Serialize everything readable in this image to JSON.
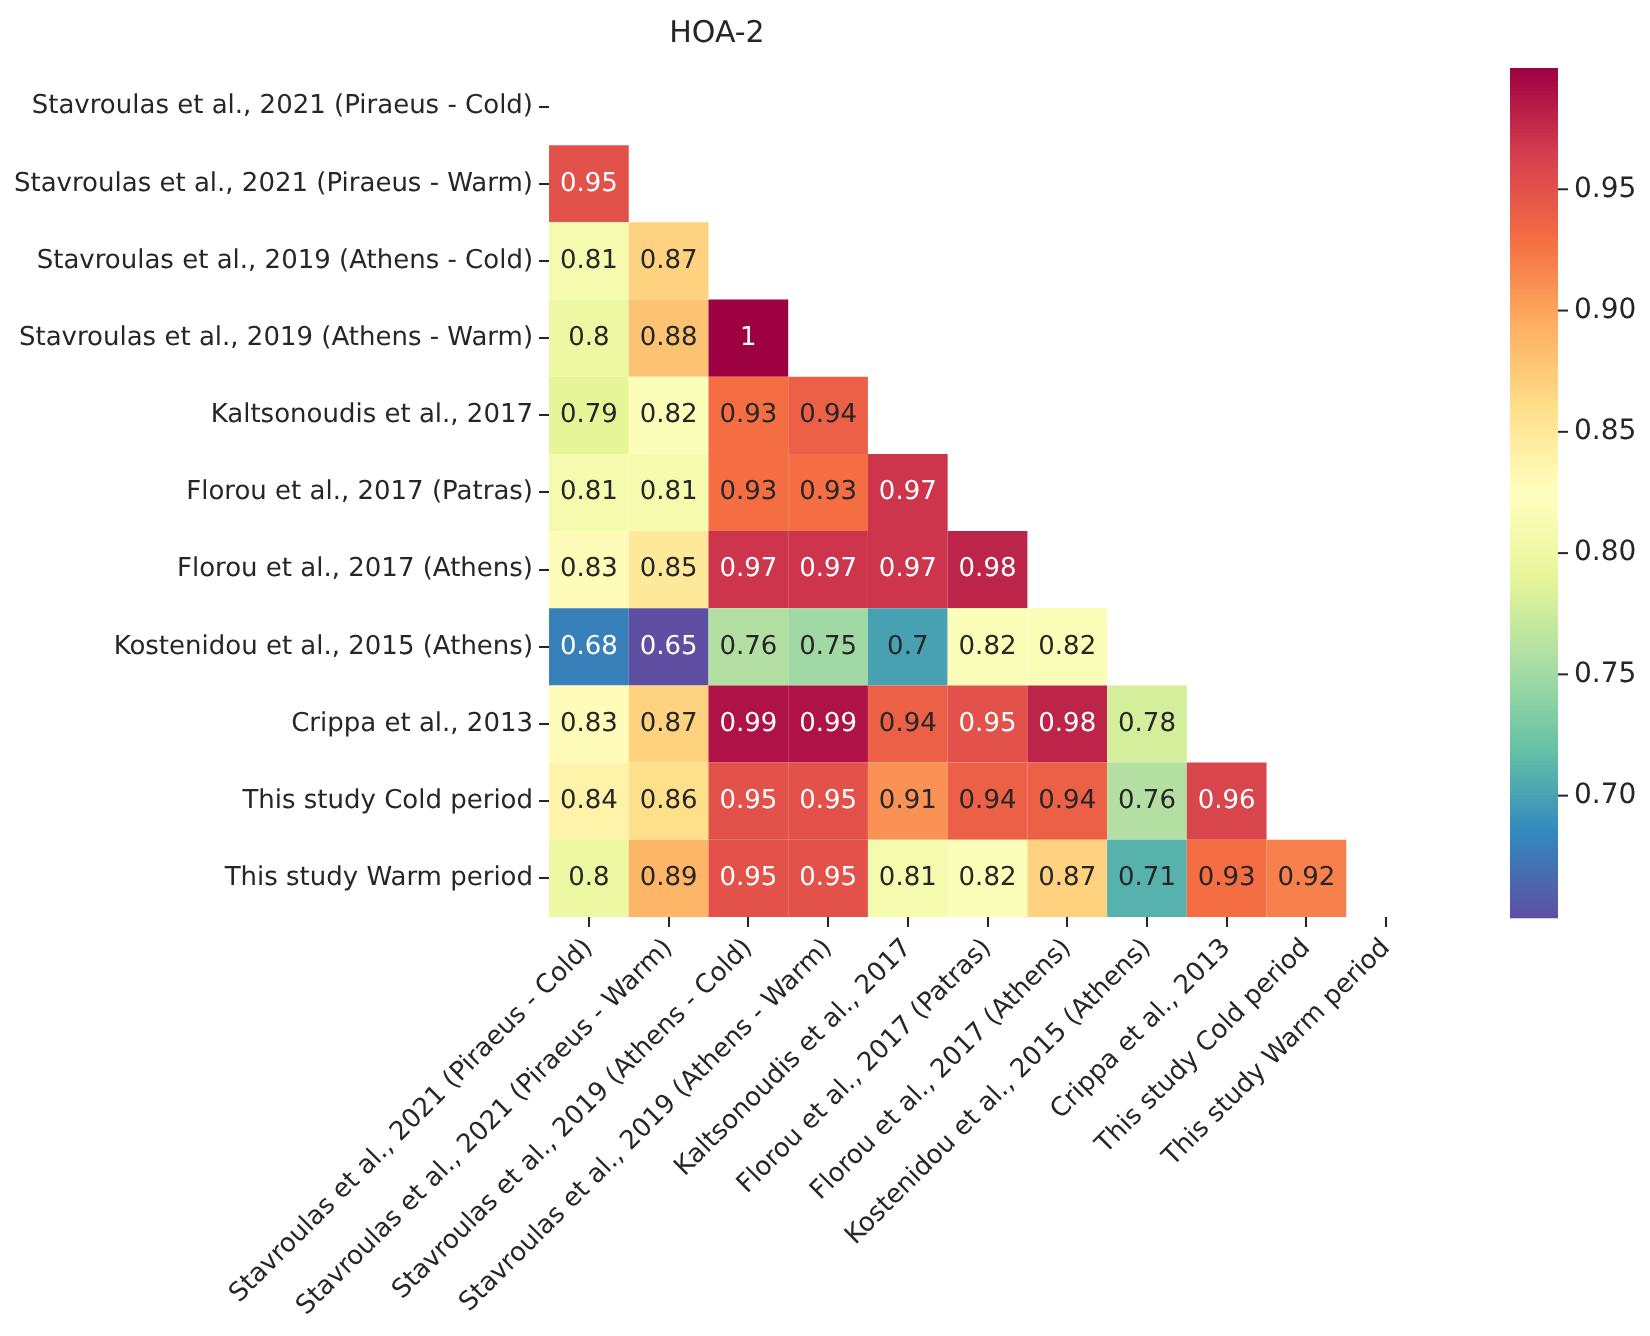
{
  "chart_data": {
    "type": "heatmap",
    "title": "HOA-2",
    "categories": [
      "Stavroulas et al., 2021 (Piraeus - Cold)",
      "Stavroulas et al., 2021 (Piraeus - Warm)",
      "Stavroulas et al., 2019 (Athens - Cold)",
      "Stavroulas et al., 2019 (Athens - Warm)",
      "Kaltsonoudis et al., 2017",
      "Florou et al., 2017 (Patras)",
      "Florou et al., 2017 (Athens)",
      "Kostenidou et al., 2015 (Athens)",
      "Crippa et al., 2013",
      "This study Cold period",
      "This study Warm period"
    ],
    "y_categories": [
      "Stavroulas et al., 2021 (Piraeus - Cold)",
      "Stavroulas et al., 2021 (Piraeus - Warm)",
      "Stavroulas et al., 2019 (Athens - Cold)",
      "Stavroulas et al., 2019 (Athens - Warm)",
      "Kaltsonoudis et al., 2017",
      "Florou et al., 2017 (Patras)",
      "Florou et al., 2017 (Athens)",
      "Kostenidou et al., 2015 (Athens)",
      "Crippa et al., 2013",
      "This study Cold period",
      "This study Warm period"
    ],
    "cells": [
      [
        null,
        null,
        null,
        null,
        null,
        null,
        null,
        null,
        null,
        null,
        null
      ],
      [
        0.95,
        null,
        null,
        null,
        null,
        null,
        null,
        null,
        null,
        null,
        null
      ],
      [
        0.81,
        0.87,
        null,
        null,
        null,
        null,
        null,
        null,
        null,
        null,
        null
      ],
      [
        0.8,
        0.88,
        1,
        null,
        null,
        null,
        null,
        null,
        null,
        null,
        null
      ],
      [
        0.79,
        0.82,
        0.93,
        0.94,
        null,
        null,
        null,
        null,
        null,
        null,
        null
      ],
      [
        0.81,
        0.81,
        0.93,
        0.93,
        0.97,
        null,
        null,
        null,
        null,
        null,
        null
      ],
      [
        0.83,
        0.85,
        0.97,
        0.97,
        0.97,
        0.98,
        null,
        null,
        null,
        null,
        null
      ],
      [
        0.68,
        0.65,
        0.76,
        0.75,
        0.7,
        0.82,
        0.82,
        null,
        null,
        null,
        null
      ],
      [
        0.83,
        0.87,
        0.99,
        0.99,
        0.94,
        0.95,
        0.98,
        0.78,
        null,
        null,
        null
      ],
      [
        0.84,
        0.86,
        0.95,
        0.95,
        0.91,
        0.94,
        0.94,
        0.76,
        0.96,
        null,
        null
      ],
      [
        0.8,
        0.89,
        0.95,
        0.95,
        0.81,
        0.82,
        0.87,
        0.71,
        0.93,
        0.92,
        null
      ]
    ],
    "clim": [
      0.65,
      1
    ],
    "cticks": [
      {
        "value": 0.7,
        "label": "0.70"
      },
      0.75,
      {
        "value": 0.8,
        "label": "0.80"
      },
      0.85,
      {
        "value": 0.9,
        "label": "0.90"
      },
      0.95
    ],
    "data_labels": true
  }
}
